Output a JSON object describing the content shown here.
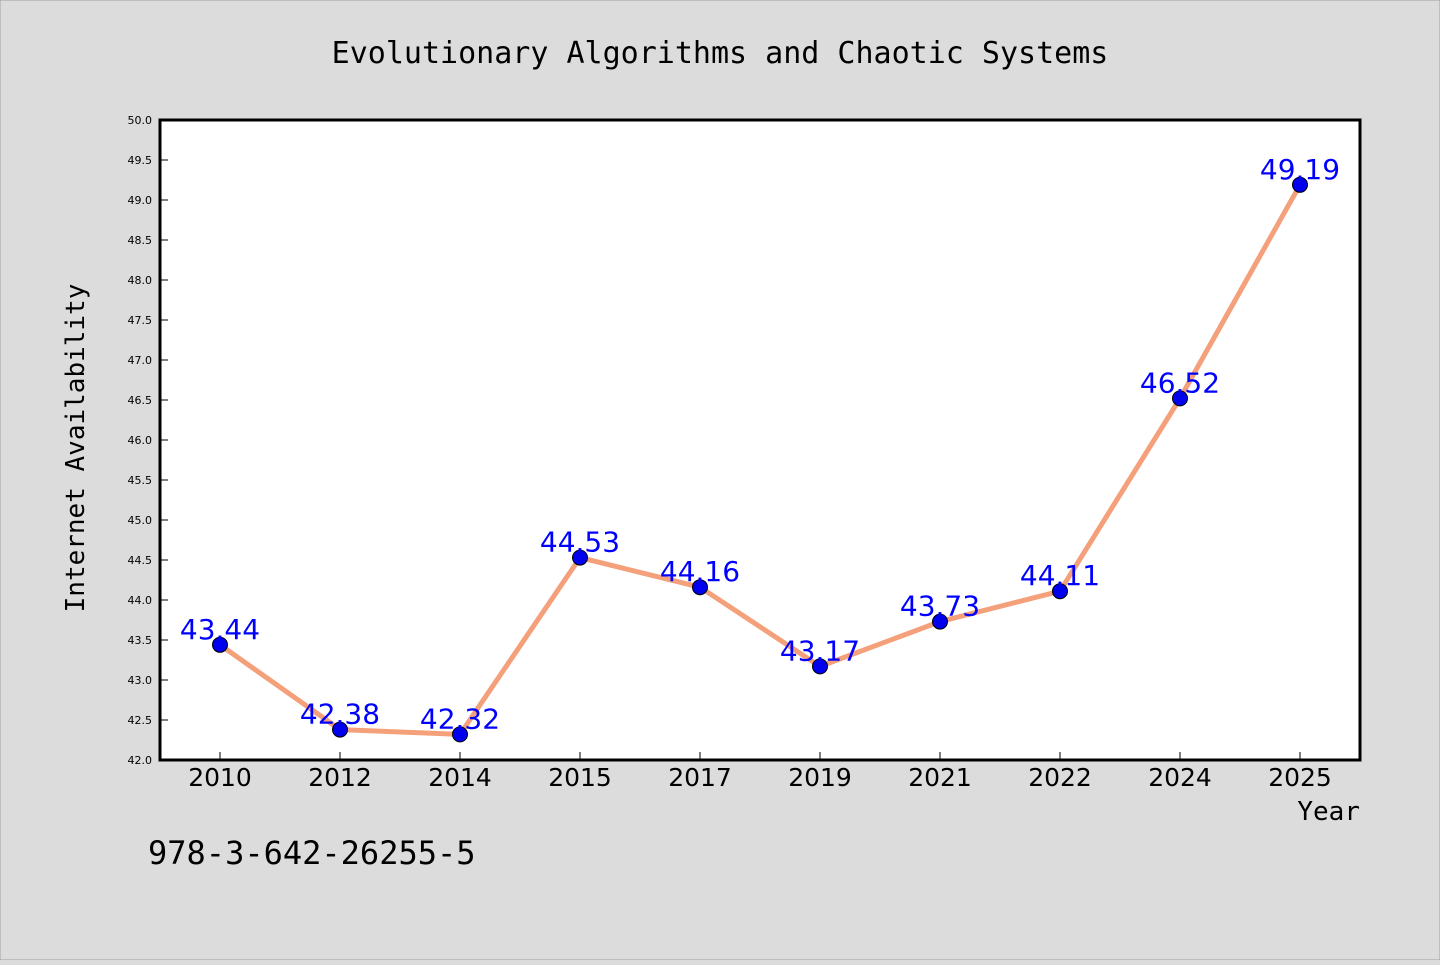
{
  "chart_data": {
    "type": "line",
    "title": "Evolutionary Algorithms and Chaotic Systems",
    "xlabel": "Year",
    "ylabel": "Internet Availability",
    "categories": [
      "2010",
      "2012",
      "2014",
      "2015",
      "2017",
      "2019",
      "2021",
      "2022",
      "2024",
      "2025"
    ],
    "series": [
      {
        "values": [
          43.44,
          42.38,
          42.32,
          44.53,
          44.16,
          43.17,
          43.73,
          44.11,
          46.52,
          49.19
        ],
        "labels": [
          "43.44",
          "42.38",
          "42.32",
          "44.53",
          "44.16",
          "43.17",
          "43.73",
          "44.11",
          "46.52",
          "49.19"
        ]
      }
    ],
    "ylim": [
      42.0,
      50.0
    ],
    "yticks": [
      "42.0",
      "42.5",
      "43.0",
      "43.5",
      "44.0",
      "44.5",
      "45.0",
      "45.5",
      "46.0",
      "46.5",
      "47.0",
      "47.5",
      "48.0",
      "48.5",
      "49.0",
      "49.5",
      "50.0"
    ],
    "grid": false,
    "colors": {
      "line": "#f4a07a",
      "marker": "#0000ee",
      "data_label": "#0000ff",
      "background": "#dcdcdc",
      "plot_area": "#ffffff"
    }
  },
  "footer": {
    "code": "978-3-642-26255-5"
  }
}
